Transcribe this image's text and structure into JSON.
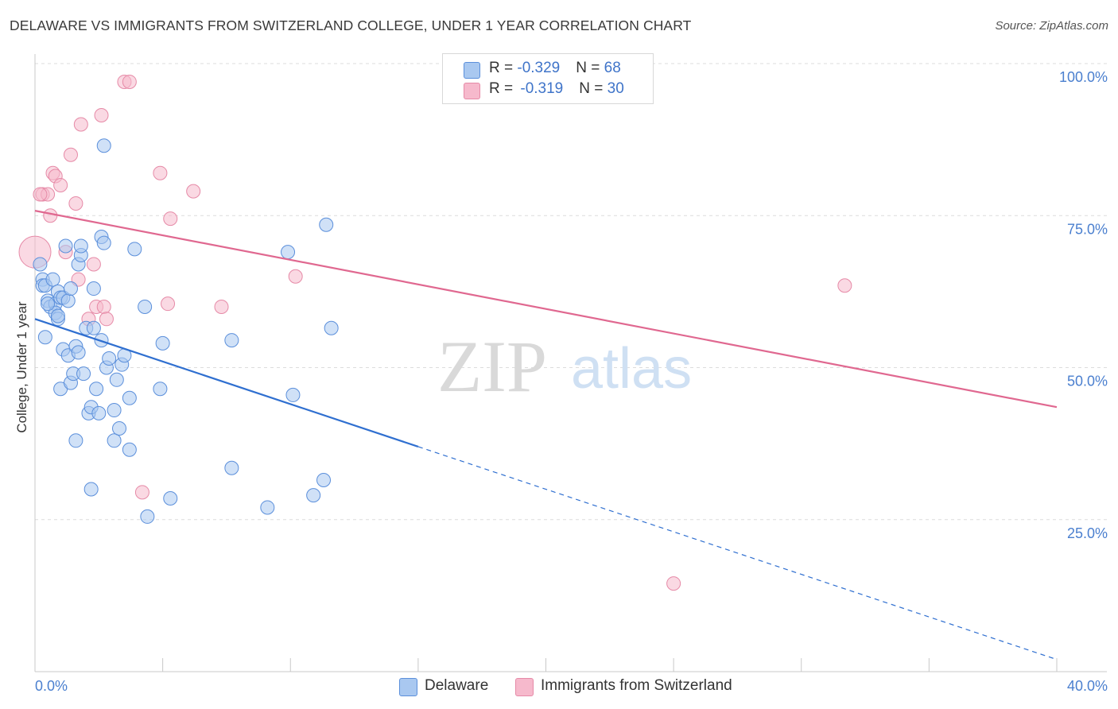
{
  "title": "DELAWARE VS IMMIGRANTS FROM SWITZERLAND COLLEGE, UNDER 1 YEAR CORRELATION CHART",
  "source": "Source: ZipAtlas.com",
  "watermark": {
    "zip": "ZIP",
    "atlas": "atlas"
  },
  "colors": {
    "blue_fill": "#a9c8f0",
    "blue_stroke": "#5b8fdb",
    "blue_line": "#2f6fd0",
    "pink_fill": "#f6b9cc",
    "pink_stroke": "#e68aa7",
    "pink_line": "#e06890",
    "axis_text": "#4a7fcf",
    "grid": "#dcdcdc"
  },
  "legend": {
    "rows": [
      {
        "series": "Delaware",
        "r_label": "R = ",
        "r_value": "-0.329",
        "n_label": "N = ",
        "n_value": "68"
      },
      {
        "series": "Immigrants from Switzerland",
        "r_label": "R = ",
        "r_value": "-0.319",
        "n_label": "N = ",
        "n_value": "30"
      }
    ]
  },
  "bottom_legend": [
    "Delaware",
    "Immigrants from Switzerland"
  ],
  "chart_data": {
    "type": "scatter",
    "title": "DELAWARE VS IMMIGRANTS FROM SWITZERLAND COLLEGE, UNDER 1 YEAR CORRELATION CHART",
    "xlabel": "",
    "ylabel": "College, Under 1 year",
    "xlim": [
      0,
      40
    ],
    "ylim": [
      0,
      105
    ],
    "x_tick_labels": [
      "0.0%",
      "40.0%"
    ],
    "y_tick_labels": [
      "100.0%",
      "75.0%",
      "50.0%",
      "25.0%"
    ],
    "y_ticks": [
      100,
      75,
      50,
      25
    ],
    "grid": true,
    "series": [
      {
        "name": "Delaware",
        "r": -0.329,
        "n": 68,
        "trend": {
          "x_start": 0,
          "y_start": 58.0,
          "x_solid_end": 15.0,
          "y_solid_end": 37.0,
          "x_end": 40,
          "y_end": 2.0
        },
        "points": [
          [
            0.2,
            67
          ],
          [
            0.3,
            64.5
          ],
          [
            0.3,
            63.5
          ],
          [
            0.4,
            63.5
          ],
          [
            0.4,
            55.0
          ],
          [
            0.5,
            61.0
          ],
          [
            0.6,
            60.0
          ],
          [
            0.7,
            64.5
          ],
          [
            0.8,
            60.5
          ],
          [
            0.8,
            59.0
          ],
          [
            0.9,
            62.5
          ],
          [
            0.9,
            58.0
          ],
          [
            0.9,
            58.5
          ],
          [
            1.0,
            61.5
          ],
          [
            1.0,
            46.5
          ],
          [
            1.1,
            53.0
          ],
          [
            1.1,
            61.5
          ],
          [
            1.2,
            70.0
          ],
          [
            1.3,
            61.0
          ],
          [
            1.3,
            52.0
          ],
          [
            1.4,
            63.0
          ],
          [
            1.4,
            47.5
          ],
          [
            1.5,
            49.0
          ],
          [
            1.6,
            53.5
          ],
          [
            1.6,
            38.0
          ],
          [
            1.7,
            52.5
          ],
          [
            1.7,
            67.0
          ],
          [
            1.8,
            68.5
          ],
          [
            1.8,
            70.0
          ],
          [
            1.9,
            49.0
          ],
          [
            2.0,
            56.5
          ],
          [
            2.1,
            42.5
          ],
          [
            2.2,
            43.5
          ],
          [
            2.2,
            30.0
          ],
          [
            2.3,
            63.0
          ],
          [
            2.3,
            56.5
          ],
          [
            2.4,
            46.5
          ],
          [
            2.5,
            42.5
          ],
          [
            2.6,
            54.5
          ],
          [
            2.6,
            71.5
          ],
          [
            2.7,
            70.5
          ],
          [
            2.7,
            86.5
          ],
          [
            2.8,
            50.0
          ],
          [
            2.9,
            51.5
          ],
          [
            3.1,
            43.0
          ],
          [
            3.1,
            38.0
          ],
          [
            3.2,
            48.0
          ],
          [
            3.3,
            40.0
          ],
          [
            3.4,
            50.5
          ],
          [
            3.5,
            52.0
          ],
          [
            3.7,
            45.0
          ],
          [
            3.7,
            36.5
          ],
          [
            3.9,
            69.5
          ],
          [
            4.3,
            60.0
          ],
          [
            4.4,
            25.5
          ],
          [
            4.9,
            46.5
          ],
          [
            5.0,
            54.0
          ],
          [
            5.3,
            28.5
          ],
          [
            7.7,
            33.5
          ],
          [
            7.7,
            54.5
          ],
          [
            9.1,
            27.0
          ],
          [
            9.9,
            69.0
          ],
          [
            10.1,
            45.5
          ],
          [
            10.9,
            29.0
          ],
          [
            11.3,
            31.5
          ],
          [
            11.4,
            73.5
          ],
          [
            11.6,
            56.5
          ],
          [
            0.5,
            60.5
          ]
        ]
      },
      {
        "name": "Immigrants from Switzerland",
        "r": -0.319,
        "n": 30,
        "trend": {
          "x_start": 0,
          "y_start": 75.8,
          "x_end": 40,
          "y_end": 43.5
        },
        "points": [
          [
            0.0,
            69.0
          ],
          [
            0.3,
            78.5
          ],
          [
            0.5,
            78.5
          ],
          [
            0.6,
            75.0
          ],
          [
            0.7,
            82.0
          ],
          [
            0.8,
            81.5
          ],
          [
            1.0,
            80.0
          ],
          [
            1.2,
            69.0
          ],
          [
            1.4,
            85.0
          ],
          [
            1.6,
            77.0
          ],
          [
            1.7,
            64.5
          ],
          [
            1.8,
            90.0
          ],
          [
            2.1,
            58.0
          ],
          [
            2.3,
            67.0
          ],
          [
            2.4,
            60.0
          ],
          [
            2.6,
            91.5
          ],
          [
            2.7,
            60.0
          ],
          [
            2.8,
            58.0
          ],
          [
            3.5,
            97.0
          ],
          [
            3.7,
            97.0
          ],
          [
            4.2,
            29.5
          ],
          [
            4.9,
            82.0
          ],
          [
            5.2,
            60.5
          ],
          [
            5.3,
            74.5
          ],
          [
            6.2,
            79.0
          ],
          [
            7.3,
            60.0
          ],
          [
            10.2,
            65.0
          ],
          [
            25.0,
            14.5
          ],
          [
            31.7,
            63.5
          ],
          [
            0.2,
            78.5
          ]
        ]
      }
    ]
  }
}
